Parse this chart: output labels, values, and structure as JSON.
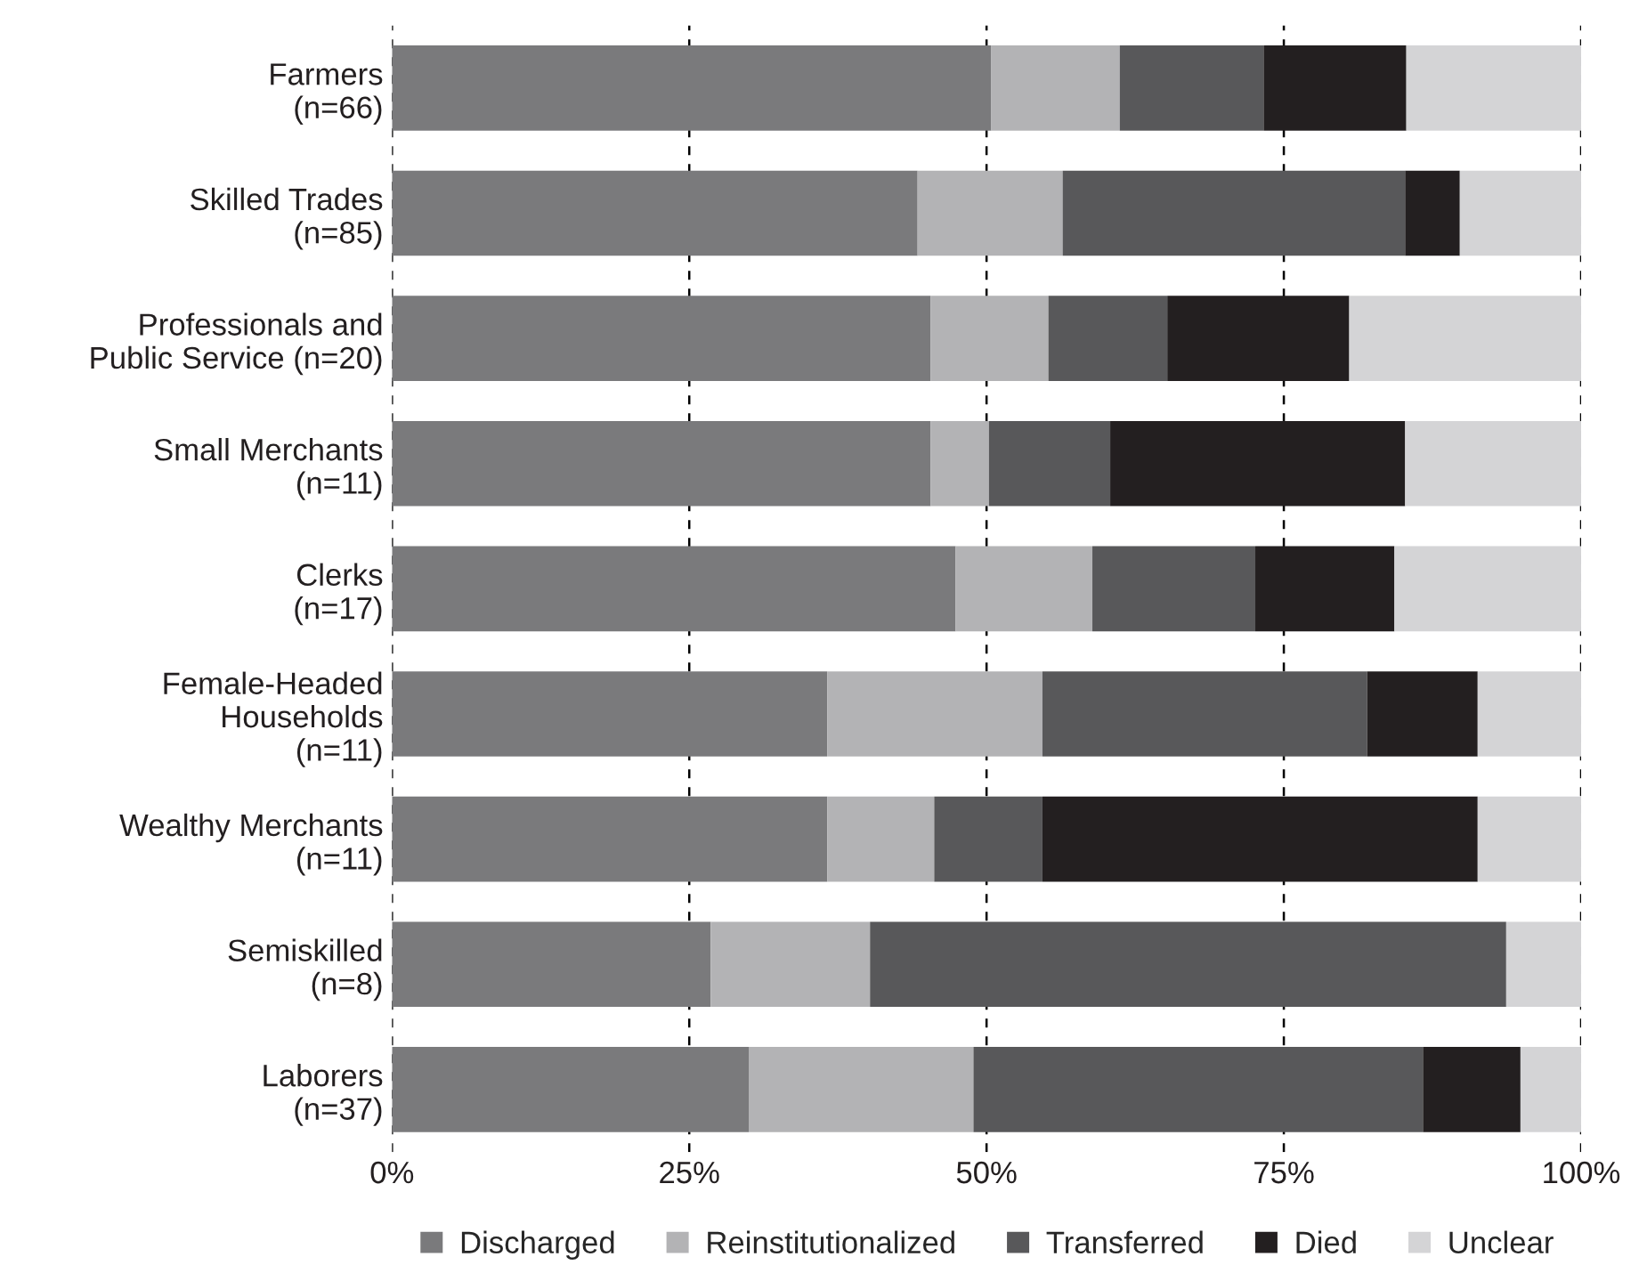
{
  "chart_data": {
    "type": "bar",
    "orientation": "horizontal",
    "stacked": true,
    "categories": [
      "Farmers\n(n=66)",
      "Skilled Trades\n(n=85)",
      "Professionals and\nPublic Service (n=20)",
      "Small Merchants\n(n=11)",
      "Clerks\n(n=17)",
      "Female-Headed\nHouseholds\n(n=11)",
      "Wealthy Merchants\n(n=11)",
      "Semiskilled\n(n=8)",
      "Laborers\n(n=37)"
    ],
    "series": [
      {
        "name": "Discharged",
        "color": "#7a7a7c",
        "values": [
          50.4,
          44.2,
          45.3,
          45.3,
          47.4,
          36.6,
          36.6,
          26.8,
          30.0
        ]
      },
      {
        "name": "Reinstitutionalized",
        "color": "#b3b3b5",
        "values": [
          10.8,
          12.2,
          9.9,
          4.9,
          11.5,
          18.1,
          9.0,
          13.4,
          18.9
        ]
      },
      {
        "name": "Transferred",
        "color": "#58585a",
        "values": [
          12.1,
          28.8,
          10.0,
          10.2,
          13.7,
          27.3,
          9.1,
          53.5,
          37.8
        ]
      },
      {
        "name": "Died",
        "color": "#231f20",
        "values": [
          12.0,
          4.6,
          15.3,
          24.8,
          11.7,
          9.3,
          36.6,
          0,
          8.2
        ]
      },
      {
        "name": "Unclear",
        "color": "#d4d4d6",
        "values": [
          14.7,
          10.2,
          19.5,
          14.8,
          15.7,
          8.7,
          8.7,
          6.3,
          5.1
        ]
      }
    ],
    "xlim": [
      0,
      100
    ],
    "xticks": [
      {
        "value": 0,
        "label": "0%"
      },
      {
        "value": 25,
        "label": "25%"
      },
      {
        "value": 50,
        "label": "50%"
      },
      {
        "value": 75,
        "label": "75%"
      },
      {
        "value": 100,
        "label": "100%"
      }
    ],
    "grid": "x",
    "line_style": "dashed",
    "legend": "bottom"
  }
}
